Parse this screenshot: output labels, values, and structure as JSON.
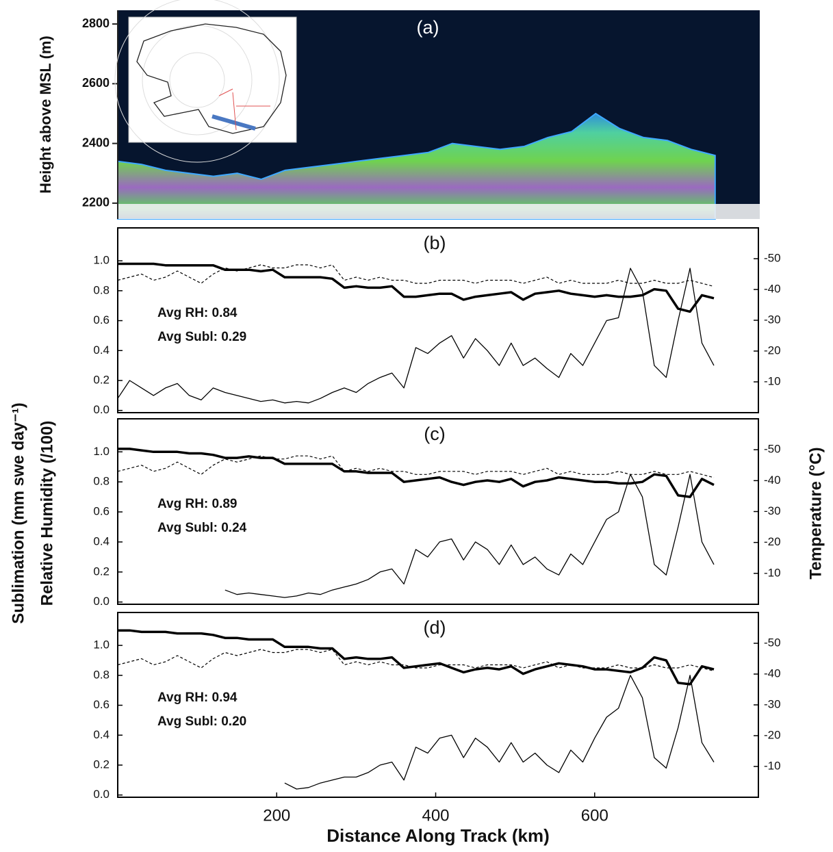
{
  "chart_data": [
    {
      "type": "area",
      "title": "(a)",
      "ylabel": "Height above MSL (m)",
      "x": [
        0,
        30,
        60,
        90,
        120,
        150,
        180,
        210,
        240,
        270,
        300,
        330,
        360,
        390,
        420,
        450,
        480,
        510,
        540,
        570,
        600,
        630,
        660,
        690,
        720,
        750
      ],
      "values": [
        2340,
        2330,
        2310,
        2300,
        2290,
        2300,
        2280,
        2310,
        2320,
        2330,
        2340,
        2350,
        2360,
        2370,
        2400,
        2390,
        2380,
        2390,
        2420,
        2440,
        2500,
        2450,
        2420,
        2410,
        2380,
        2360
      ],
      "xlim": [
        0,
        806
      ],
      "ylim": [
        2147,
        2846
      ],
      "yticks": [
        2200,
        2400,
        2600,
        2800
      ]
    },
    {
      "type": "line",
      "title": "(b)",
      "annotations": [
        "Avg RH: 0.84",
        "Avg Subl: 0.29"
      ],
      "x": [
        0,
        15,
        30,
        45,
        60,
        75,
        90,
        105,
        120,
        135,
        150,
        165,
        180,
        195,
        210,
        225,
        240,
        255,
        270,
        285,
        300,
        315,
        330,
        345,
        360,
        375,
        390,
        405,
        420,
        435,
        450,
        465,
        480,
        495,
        510,
        525,
        540,
        555,
        570,
        585,
        600,
        615,
        630,
        645,
        660,
        675,
        690,
        705,
        720,
        735,
        750
      ],
      "series": [
        {
          "color": "#000000",
          "width": 3.5,
          "values": [
            0.98,
            0.98,
            0.98,
            0.98,
            0.97,
            0.97,
            0.97,
            0.97,
            0.97,
            0.94,
            0.94,
            0.94,
            0.93,
            0.94,
            0.89,
            0.89,
            0.89,
            0.89,
            0.88,
            0.82,
            0.83,
            0.82,
            0.82,
            0.83,
            0.76,
            0.76,
            0.77,
            0.78,
            0.78,
            0.74,
            0.76,
            0.77,
            0.78,
            0.79,
            0.74,
            0.78,
            0.79,
            0.8,
            0.78,
            0.77,
            0.76,
            0.77,
            0.76,
            0.76,
            0.77,
            0.81,
            0.8,
            0.68,
            0.66,
            0.77,
            0.75
          ]
        },
        {
          "color": "#000000",
          "width": 1.2,
          "style": "dashed",
          "axis": "y2",
          "values": [
            -43,
            -44,
            -45,
            -43,
            -44,
            -46,
            -44,
            -42,
            -45,
            -47,
            -46,
            -47,
            -48,
            -47,
            -47,
            -48,
            -48,
            -47,
            -48,
            -43,
            -44,
            -43,
            -44,
            -43,
            -43,
            -42,
            -42,
            -43,
            -43,
            -43,
            -42,
            -43,
            -43,
            -43,
            -42,
            -43,
            -44,
            -42,
            -43,
            -42,
            -42,
            -42,
            -43,
            -42,
            -42,
            -43,
            -42,
            -42,
            -43,
            -42,
            -41
          ]
        },
        {
          "color": "#000000",
          "width": 1.3,
          "values": [
            0.08,
            0.2,
            0.15,
            0.1,
            0.15,
            0.18,
            0.1,
            0.07,
            0.15,
            0.12,
            0.1,
            0.08,
            0.06,
            0.07,
            0.05,
            0.06,
            0.05,
            0.08,
            0.12,
            0.15,
            0.12,
            0.18,
            0.22,
            0.25,
            0.15,
            0.42,
            0.38,
            0.45,
            0.5,
            0.35,
            0.48,
            0.4,
            0.3,
            0.45,
            0.3,
            0.35,
            0.28,
            0.22,
            0.38,
            0.3,
            0.45,
            0.6,
            0.62,
            0.95,
            0.8,
            0.3,
            0.22,
            0.6,
            0.95,
            0.45,
            0.3
          ]
        }
      ],
      "xlim": [
        0,
        806
      ],
      "ylim": [
        -0.015,
        1.22
      ],
      "y2lim": [
        0,
        -60
      ],
      "yticks": [
        {
          "value": 0,
          "label": "0.0"
        },
        0.2,
        0.4,
        0.6,
        0.8,
        {
          "value": 1,
          "label": "1.0"
        }
      ],
      "y2ticks": [
        -10,
        -20,
        -30,
        -40,
        -50
      ]
    },
    {
      "type": "line",
      "title": "(c)",
      "annotations": [
        "Avg RH: 0.89",
        "Avg Subl: 0.24"
      ],
      "ylabel": [
        "Sublimation (mm swe day⁻¹)",
        "Relative Humidity (/100)"
      ],
      "y2label": "Temperature (°C)",
      "x": [
        0,
        15,
        30,
        45,
        60,
        75,
        90,
        105,
        120,
        135,
        150,
        165,
        180,
        195,
        210,
        225,
        240,
        255,
        270,
        285,
        300,
        315,
        330,
        345,
        360,
        375,
        390,
        405,
        420,
        435,
        450,
        465,
        480,
        495,
        510,
        525,
        540,
        555,
        570,
        585,
        600,
        615,
        630,
        645,
        660,
        675,
        690,
        705,
        720,
        735,
        750
      ],
      "series": [
        {
          "color": "#000000",
          "width": 3.5,
          "values": [
            1.02,
            1.02,
            1.01,
            1.0,
            1.0,
            1.0,
            0.99,
            0.99,
            0.98,
            0.96,
            0.96,
            0.97,
            0.96,
            0.96,
            0.92,
            0.92,
            0.92,
            0.92,
            0.92,
            0.87,
            0.87,
            0.86,
            0.86,
            0.86,
            0.8,
            0.81,
            0.82,
            0.83,
            0.8,
            0.78,
            0.8,
            0.81,
            0.8,
            0.82,
            0.77,
            0.8,
            0.81,
            0.83,
            0.82,
            0.81,
            0.8,
            0.8,
            0.79,
            0.79,
            0.8,
            0.85,
            0.84,
            0.71,
            0.7,
            0.82,
            0.78
          ]
        },
        {
          "color": "#000000",
          "width": 1.2,
          "style": "dashed",
          "axis": "y2",
          "values": [
            -43,
            -44,
            -45,
            -43,
            -44,
            -46,
            -44,
            -42,
            -45,
            -47,
            -46,
            -47,
            -48,
            -47,
            -47,
            -48,
            -48,
            -47,
            -48,
            -43,
            -44,
            -43,
            -44,
            -43,
            -43,
            -42,
            -42,
            -43,
            -43,
            -43,
            -42,
            -43,
            -43,
            -43,
            -42,
            -43,
            -44,
            -42,
            -43,
            -42,
            -42,
            -42,
            -43,
            -42,
            -42,
            -43,
            -42,
            -42,
            -43,
            -42,
            -41
          ]
        },
        {
          "color": "#000000",
          "width": 1.3,
          "values": [
            null,
            null,
            null,
            null,
            null,
            null,
            null,
            null,
            null,
            0.08,
            0.05,
            0.06,
            0.05,
            0.04,
            0.03,
            0.04,
            0.06,
            0.05,
            0.08,
            0.1,
            0.12,
            0.15,
            0.2,
            0.22,
            0.12,
            0.35,
            0.3,
            0.4,
            0.42,
            0.28,
            0.4,
            0.35,
            0.25,
            0.38,
            0.25,
            0.3,
            0.22,
            0.18,
            0.32,
            0.25,
            0.4,
            0.55,
            0.6,
            0.85,
            0.7,
            0.25,
            0.18,
            0.5,
            0.85,
            0.4,
            0.25
          ]
        }
      ],
      "xlim": [
        0,
        806
      ],
      "ylim": [
        -0.015,
        1.22
      ],
      "y2lim": [
        0,
        -60
      ],
      "yticks": [
        {
          "value": 0,
          "label": "0.0"
        },
        0.2,
        0.4,
        0.6,
        0.8,
        {
          "value": 1,
          "label": "1.0"
        }
      ],
      "y2ticks": [
        -10,
        -20,
        -30,
        -40,
        -50
      ]
    },
    {
      "type": "line",
      "title": "(d)",
      "annotations": [
        "Avg RH: 0.94",
        "Avg Subl: 0.20"
      ],
      "xlabel": "Distance Along Track (km)",
      "x": [
        0,
        15,
        30,
        45,
        60,
        75,
        90,
        105,
        120,
        135,
        150,
        165,
        180,
        195,
        210,
        225,
        240,
        255,
        270,
        285,
        300,
        315,
        330,
        345,
        360,
        375,
        390,
        405,
        420,
        435,
        450,
        465,
        480,
        495,
        510,
        525,
        540,
        555,
        570,
        585,
        600,
        615,
        630,
        645,
        660,
        675,
        690,
        705,
        720,
        735,
        750
      ],
      "series": [
        {
          "color": "#000000",
          "width": 3.5,
          "values": [
            1.1,
            1.1,
            1.09,
            1.09,
            1.09,
            1.08,
            1.08,
            1.08,
            1.07,
            1.05,
            1.05,
            1.04,
            1.04,
            1.04,
            0.99,
            0.99,
            0.99,
            0.98,
            0.98,
            0.91,
            0.92,
            0.91,
            0.91,
            0.92,
            0.85,
            0.86,
            0.87,
            0.88,
            0.85,
            0.82,
            0.84,
            0.85,
            0.84,
            0.86,
            0.81,
            0.84,
            0.86,
            0.88,
            0.87,
            0.86,
            0.84,
            0.84,
            0.83,
            0.82,
            0.85,
            0.92,
            0.9,
            0.75,
            0.74,
            0.86,
            0.84
          ]
        },
        {
          "color": "#000000",
          "width": 1.2,
          "style": "dashed",
          "axis": "y2",
          "values": [
            -43,
            -44,
            -45,
            -43,
            -44,
            -46,
            -44,
            -42,
            -45,
            -47,
            -46,
            -47,
            -48,
            -47,
            -47,
            -48,
            -48,
            -47,
            -48,
            -43,
            -44,
            -43,
            -44,
            -43,
            -43,
            -42,
            -42,
            -43,
            -43,
            -43,
            -42,
            -43,
            -43,
            -43,
            -42,
            -43,
            -44,
            -42,
            -43,
            -42,
            -42,
            -42,
            -43,
            -42,
            -42,
            -43,
            -42,
            -42,
            -43,
            -42,
            -41
          ]
        },
        {
          "color": "#000000",
          "width": 1.3,
          "values": [
            null,
            null,
            null,
            null,
            null,
            null,
            null,
            null,
            null,
            null,
            null,
            null,
            null,
            null,
            0.08,
            0.04,
            0.05,
            0.08,
            0.1,
            0.12,
            0.12,
            0.15,
            0.2,
            0.22,
            0.1,
            0.32,
            0.28,
            0.38,
            0.4,
            0.25,
            0.38,
            0.32,
            0.22,
            0.35,
            0.22,
            0.28,
            0.2,
            0.15,
            0.3,
            0.22,
            0.38,
            0.52,
            0.58,
            0.8,
            0.65,
            0.25,
            0.18,
            0.45,
            0.8,
            0.35,
            0.22
          ]
        }
      ],
      "xlim": [
        0,
        806
      ],
      "ylim": [
        -0.015,
        1.22
      ],
      "y2lim": [
        0,
        -60
      ],
      "xticks": [
        200,
        400,
        600
      ],
      "yticks": [
        {
          "value": 0,
          "label": "0.0"
        },
        0.2,
        0.4,
        0.6,
        0.8,
        {
          "value": 1,
          "label": "1.0"
        }
      ],
      "y2ticks": [
        -10,
        -20,
        -30,
        -40,
        -50
      ]
    }
  ]
}
